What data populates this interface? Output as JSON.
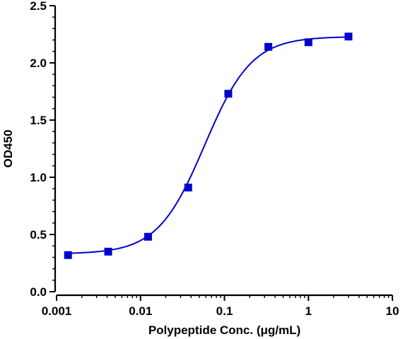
{
  "chart_data": {
    "type": "scatter",
    "title": "",
    "xlabel": "Polypeptide Conc. (μg/mL)",
    "ylabel": "OD450",
    "x_scale": "log",
    "xlim": [
      0.001,
      10
    ],
    "ylim": [
      0,
      2.5
    ],
    "x_ticks": [
      {
        "value": 0.001,
        "label": "0.001"
      },
      {
        "value": 0.01,
        "label": "0.01"
      },
      {
        "value": 0.1,
        "label": "0.1"
      },
      {
        "value": 1,
        "label": "1"
      },
      {
        "value": 10,
        "label": "10"
      }
    ],
    "y_ticks": [
      {
        "value": 0,
        "label": "0.0"
      },
      {
        "value": 0.5,
        "label": "0.5"
      },
      {
        "value": 1.0,
        "label": "1.0"
      },
      {
        "value": 1.5,
        "label": "1.5"
      },
      {
        "value": 2.0,
        "label": "2.0"
      },
      {
        "value": 2.5,
        "label": "2.5"
      }
    ],
    "grid": false,
    "color": "#0000cc",
    "marker": "square",
    "fit": "sigmoidal four-parameter logistic",
    "series": [
      {
        "x": [
          0.00137,
          0.00412,
          0.0123,
          0.037,
          0.111,
          0.333,
          1.0,
          3.0
        ],
        "y": [
          0.32,
          0.35,
          0.48,
          0.91,
          1.73,
          2.14,
          2.18,
          2.23
        ]
      }
    ]
  }
}
